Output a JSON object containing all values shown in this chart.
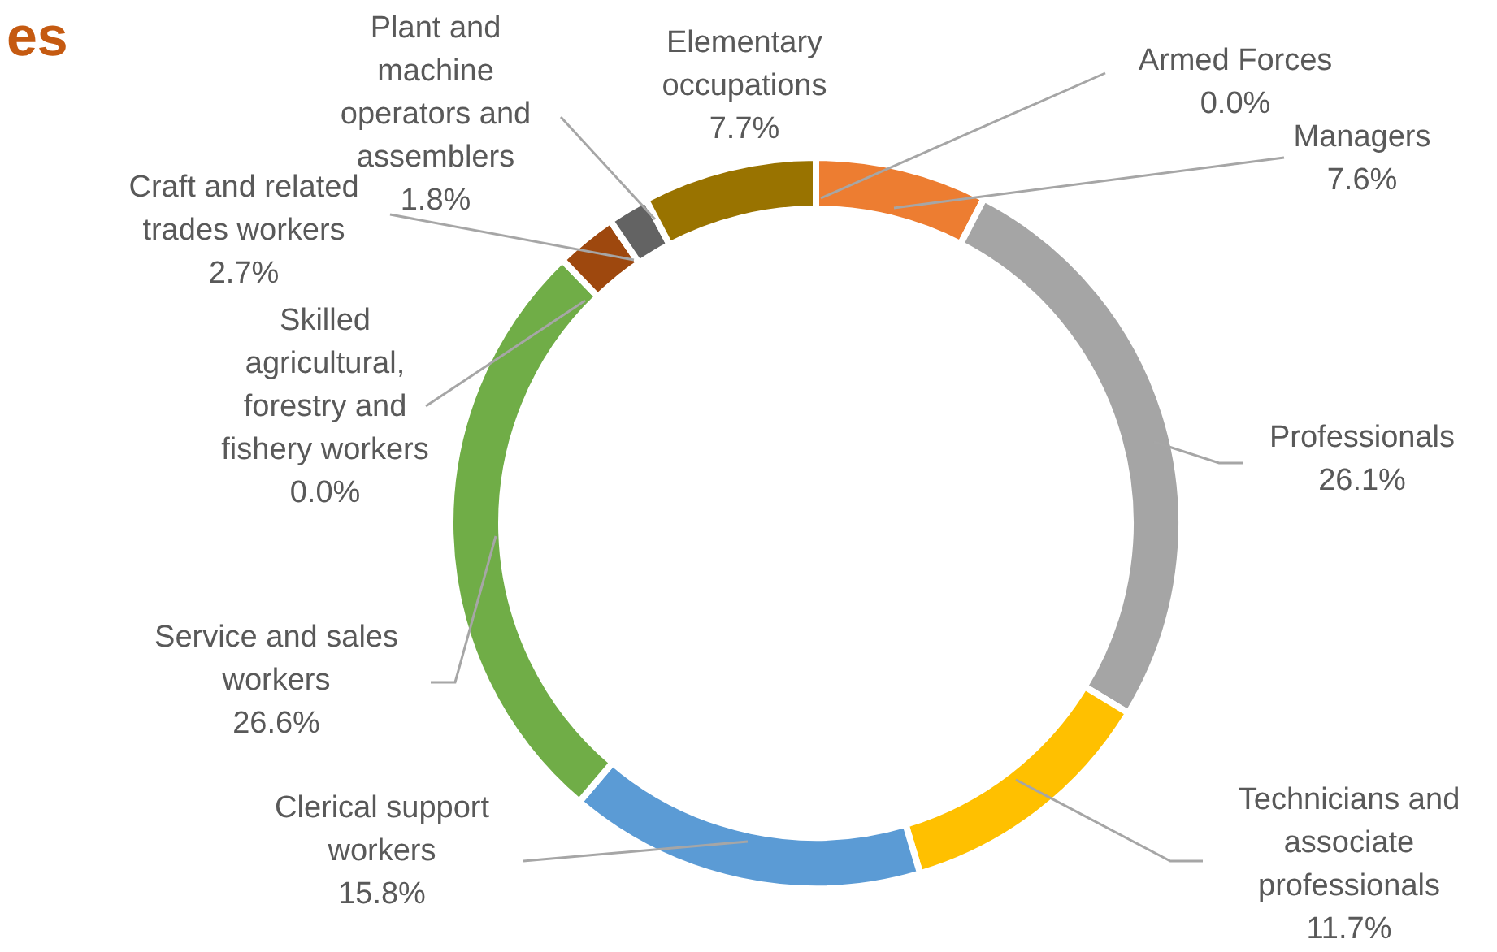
{
  "chart_data": {
    "type": "donut",
    "title": "es",
    "categories": [
      "Armed Forces",
      "Managers",
      "Professionals",
      "Technicians and associate professionals",
      "Clerical support workers",
      "Service and sales workers",
      "Skilled agricultural, forestry and fishery workers",
      "Craft and related trades workers",
      "Plant and machine operators and assemblers",
      "Elementary occupations"
    ],
    "values": [
      0.0,
      7.6,
      26.1,
      11.7,
      15.8,
      26.6,
      0.0,
      2.7,
      1.8,
      7.7
    ],
    "value_labels": [
      "0.0%",
      "7.6%",
      "26.1%",
      "11.7%",
      "15.8%",
      "26.6%",
      "0.0%",
      "2.7%",
      "1.8%",
      "7.7%"
    ],
    "colors": [
      "#4472c4",
      "#ed7d31",
      "#a5a5a5",
      "#ffc000",
      "#5b9bd5",
      "#70ad47",
      "#264478",
      "#9e480e",
      "#636363",
      "#997300"
    ],
    "legend": false
  }
}
